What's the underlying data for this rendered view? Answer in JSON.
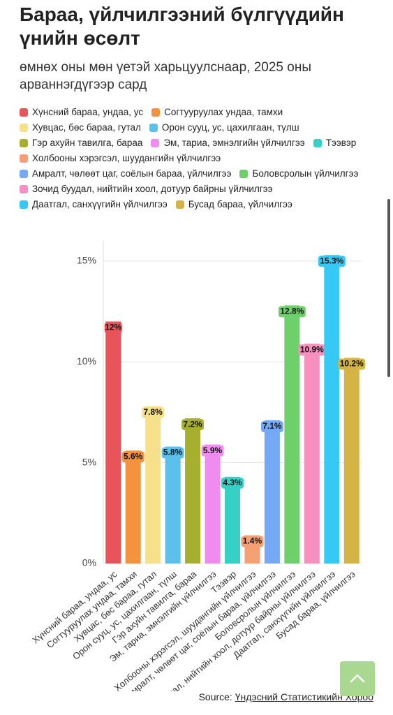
{
  "chart_data": {
    "type": "bar",
    "title": "Бараа, үйлчилгээний бүлгүүдийн үнийн өсөлт",
    "subtitle": "өмнөх оны мөн үетэй харьцуулснаар, 2025 оны арваннэгдүгээр сард",
    "categories": [
      "Хүнсний бараа, ундаа, ус",
      "Согтууруулах ундаа, тамхи",
      "Хувцас, бөс бараа, гутал",
      "Орон сууц, ус, цахилгаан, түлш",
      "Гэр ахуйн тавилга, бараа",
      "Эм, тариа, эмнэлгийн үйлчилгээ",
      "Тээвэр",
      "Холбооны хэрэгсэл, шуудангийн үйлчилгээ",
      "Амралт, чөлөөт цаг, соёлын бараа, үйлчилгээ",
      "Боловсролын үйлчилгээ",
      "Зочид буудал, нийтийн хоол, дотуур байрны үйлчилгээ",
      "Даатгал, санхүүгийн үйлчилгээ",
      "Бусад бараа, үйлчилгээ"
    ],
    "values": [
      12,
      5.6,
      7.8,
      5.8,
      7.2,
      5.9,
      4.3,
      1.4,
      7.1,
      12.8,
      10.9,
      15.3,
      10.2
    ],
    "value_labels": [
      "12%",
      "5.6%",
      "7.8%",
      "5.8%",
      "7.2%",
      "5.9%",
      "4.3%",
      "1.4%",
      "7.1%",
      "12.8%",
      "10.9%",
      "15.3%",
      "10.2%"
    ],
    "colors": [
      "#e9545a",
      "#f5923e",
      "#f7e08a",
      "#5bc0eb",
      "#a6b02e",
      "#f08cf0",
      "#36d1c4",
      "#f4a073",
      "#76a9f5",
      "#6ed06a",
      "#f78fc0",
      "#36c9f5",
      "#d4b444"
    ],
    "ylim": [
      0,
      16
    ],
    "yticks": [
      {
        "value": 0,
        "label": "0%"
      },
      {
        "value": 5,
        "label": "5%"
      },
      {
        "value": 10,
        "label": "10%"
      },
      {
        "value": 15,
        "label": "15%"
      }
    ],
    "grid": true
  },
  "source": {
    "label": "Source:",
    "name": "Үндэсний Статистикийн Хороо"
  }
}
